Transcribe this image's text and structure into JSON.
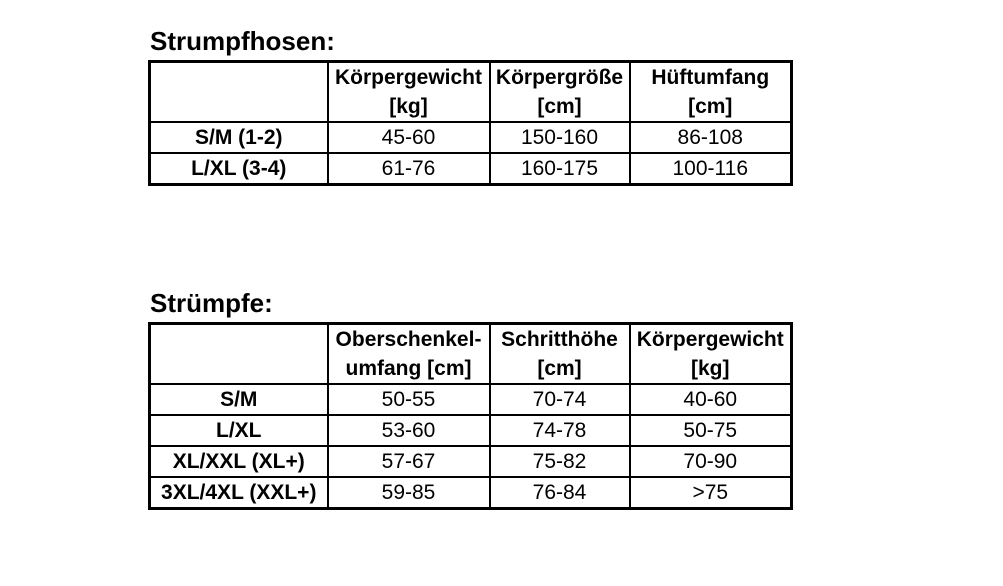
{
  "page": {
    "background_color": "#ffffff",
    "text_color": "#000000",
    "border_color": "#000000"
  },
  "tables": [
    {
      "title": "Strumpfhosen:",
      "headers": [
        {
          "line1": "",
          "line2": ""
        },
        {
          "line1": "Körpergewicht",
          "line2": "[kg]"
        },
        {
          "line1": "Körpergröße",
          "line2": "[cm]"
        },
        {
          "line1": "Hüftumfang",
          "line2": "[cm]"
        }
      ],
      "rows": [
        {
          "label": "S/M (1-2)",
          "values": [
            "45-60",
            "150-160",
            "86-108"
          ]
        },
        {
          "label": "L/XL (3-4)",
          "values": [
            "61-76",
            "160-175",
            "100-116"
          ]
        }
      ]
    },
    {
      "title": "Strümpfe:",
      "headers": [
        {
          "line1": "",
          "line2": ""
        },
        {
          "line1": "Oberschenkel-",
          "line2": "umfang [cm]"
        },
        {
          "line1": "Schritthöhe",
          "line2": "[cm]"
        },
        {
          "line1": "Körpergewicht",
          "line2": "[kg]"
        }
      ],
      "rows": [
        {
          "label": "S/M",
          "values": [
            "50-55",
            "70-74",
            "40-60"
          ]
        },
        {
          "label": "L/XL",
          "values": [
            "53-60",
            "74-78",
            "50-75"
          ]
        },
        {
          "label": "XL/XXL (XL+)",
          "values": [
            "57-67",
            "75-82",
            "70-90"
          ]
        },
        {
          "label": "3XL/4XL (XXL+)",
          "values": [
            "59-85",
            "76-84",
            ">75"
          ]
        }
      ]
    }
  ]
}
